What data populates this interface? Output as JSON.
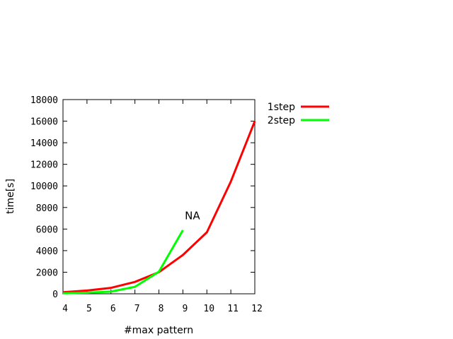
{
  "chart_data": {
    "type": "line",
    "xlabel": "#max pattern",
    "ylabel": "time[s]",
    "xlim": [
      4,
      12
    ],
    "ylim": [
      0,
      18000
    ],
    "xticks": [
      4,
      5,
      6,
      7,
      8,
      9,
      10,
      11,
      12
    ],
    "yticks": [
      0,
      2000,
      4000,
      6000,
      8000,
      10000,
      12000,
      14000,
      16000,
      18000
    ],
    "grid": false,
    "legend_position": "outside-right-top",
    "series": [
      {
        "name": "1step",
        "color": "#ff0000",
        "x": [
          4,
          5,
          6,
          7,
          8,
          9,
          10,
          11,
          12
        ],
        "y": [
          150,
          300,
          550,
          1100,
          2000,
          3600,
          5700,
          10400,
          16000
        ]
      },
      {
        "name": "2step",
        "color": "#00ff00",
        "x": [
          4,
          5,
          6,
          7,
          8,
          9
        ],
        "y": [
          50,
          100,
          200,
          650,
          2050,
          5900
        ]
      }
    ],
    "annotations": [
      {
        "text": "NA",
        "x": 9.4,
        "y": 6900
      }
    ]
  }
}
